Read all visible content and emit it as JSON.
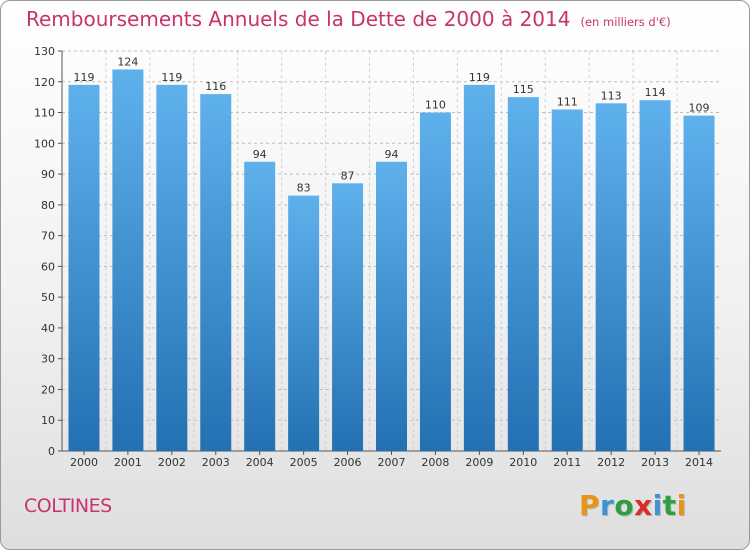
{
  "title": "Remboursements Annuels de la Dette de 2000 à 2014",
  "subtitle": "(en milliers d'€)",
  "commune": "COLTINES",
  "logo": {
    "letters": [
      "P",
      "r",
      "o",
      "x",
      "i",
      "t",
      "i"
    ],
    "colors": [
      "#e89419",
      "#3f93d4",
      "#2d9e43",
      "#d72f28",
      "#3f93d4",
      "#2d9e43",
      "#e89419"
    ]
  },
  "colors": {
    "bar_top": "#5fb1ec",
    "bar_bottom": "#2370b2",
    "accent": "#c8336d"
  },
  "chart_data": {
    "type": "bar",
    "title": "Remboursements Annuels de la Dette de 2000 à 2014",
    "xlabel": "",
    "ylabel": "",
    "categories": [
      "2000",
      "2001",
      "2002",
      "2003",
      "2004",
      "2005",
      "2006",
      "2007",
      "2008",
      "2009",
      "2010",
      "2011",
      "2012",
      "2013",
      "2014"
    ],
    "values": [
      119,
      124,
      119,
      116,
      94,
      83,
      87,
      94,
      110,
      119,
      115,
      111,
      113,
      114,
      109
    ],
    "ylim": [
      0,
      130
    ],
    "yticks": [
      0,
      10,
      20,
      30,
      40,
      50,
      60,
      70,
      80,
      90,
      100,
      110,
      120,
      130
    ],
    "grid": true
  }
}
